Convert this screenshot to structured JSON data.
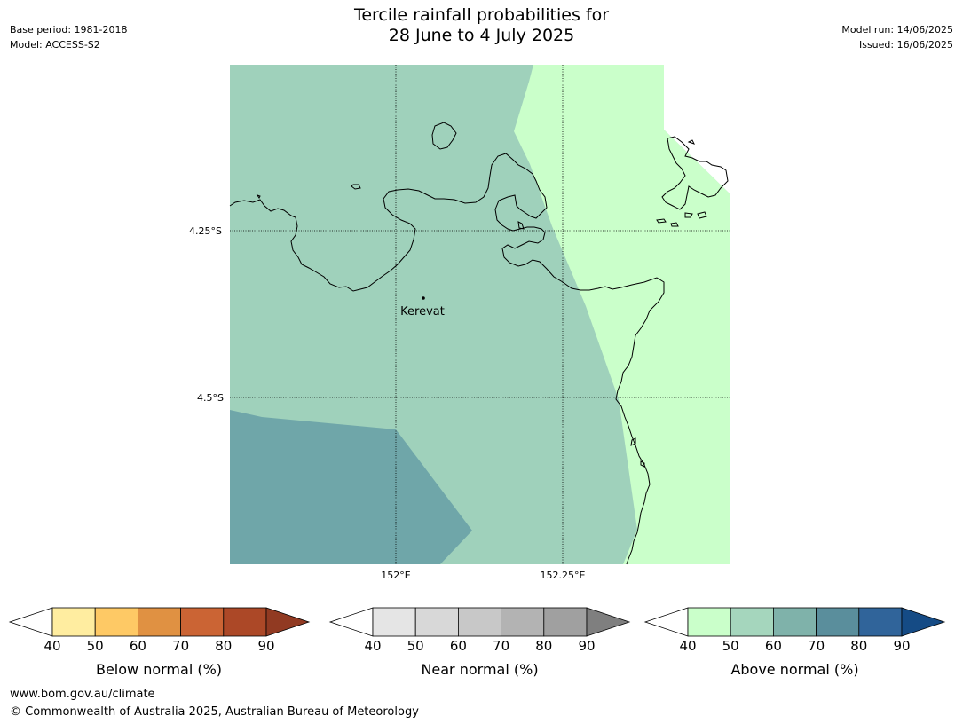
{
  "header": {
    "title_line1": "Tercile rainfall probabilities for",
    "title_line2": "28 June to 4 July 2025",
    "base_period": "Base period: 1981-2018",
    "model": "Model: ACCESS-S2",
    "model_run": "Model run: 14/06/2025",
    "issued": "Issued: 16/06/2025"
  },
  "map": {
    "place_label": "Kerevat",
    "lat_labels": [
      "4.25°S",
      "4.5°S"
    ],
    "lon_labels": [
      "152°E",
      "152.25°E"
    ],
    "colors": {
      "above_50_60": "#9fd1bb",
      "above_40_50": "#caffca",
      "above_60_70": "#6fa6a9",
      "coast": "#000000"
    }
  },
  "colorbars": [
    {
      "title": "Below normal (%)",
      "ticks": [
        "40",
        "50",
        "60",
        "70",
        "80",
        "90"
      ],
      "colors": [
        "#ffeda0",
        "#fec965",
        "#e09142",
        "#cb6434",
        "#ac4827",
        "#913a22"
      ]
    },
    {
      "title": "Near normal (%)",
      "ticks": [
        "40",
        "50",
        "60",
        "70",
        "80",
        "90"
      ],
      "colors": [
        "#e5e5e5",
        "#d8d8d8",
        "#c8c8c8",
        "#b3b3b3",
        "#a0a0a0",
        "#7f7f7f"
      ]
    },
    {
      "title": "Above normal (%)",
      "ticks": [
        "40",
        "50",
        "60",
        "70",
        "80",
        "90"
      ],
      "colors": [
        "#caffca",
        "#a5d6bd",
        "#7fb2aa",
        "#5a8e9c",
        "#30649a",
        "#154b85"
      ]
    }
  ],
  "footer": {
    "url": "www.bom.gov.au/climate",
    "copyright": "© Commonwealth of Australia 2025, Australian Bureau of Meteorology"
  }
}
